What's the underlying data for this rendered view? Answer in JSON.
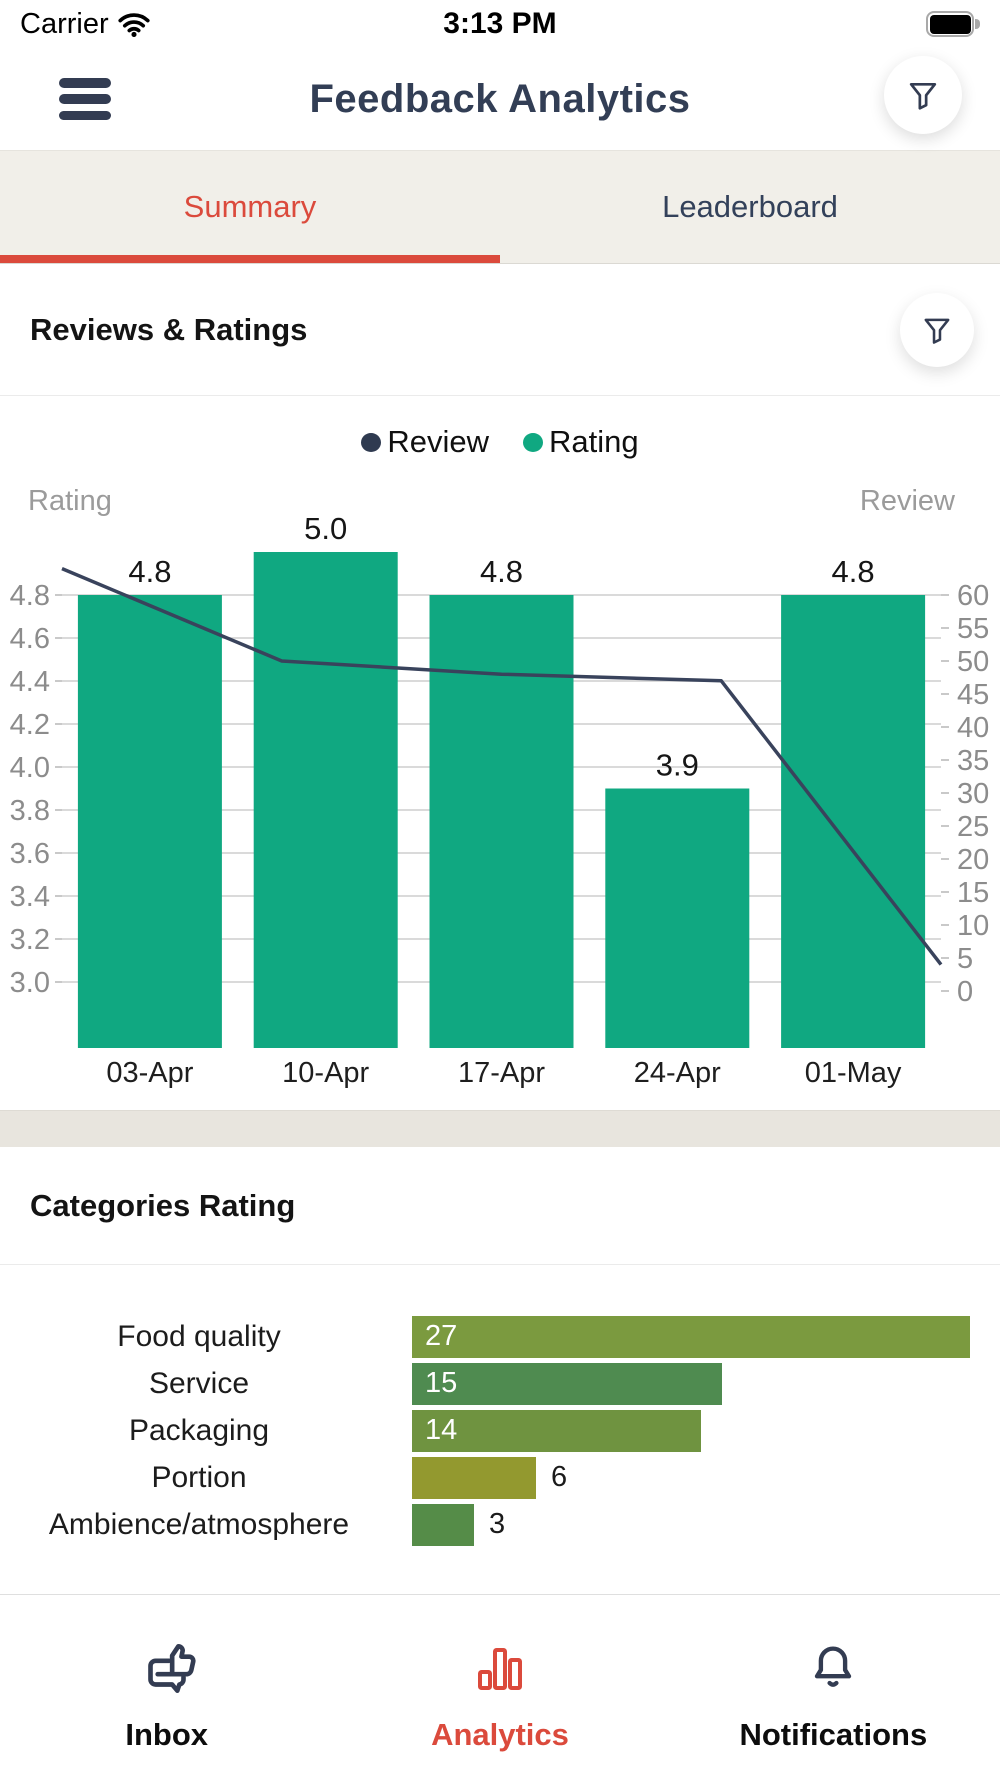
{
  "status_bar": {
    "carrier": "Carrier",
    "time": "3:13 PM",
    "icons": [
      "wifi-icon",
      "battery-icon"
    ]
  },
  "header": {
    "title": "Feedback Analytics",
    "menu_icon": "hamburger-menu-icon",
    "filter_icon": "filter-funnel-icon"
  },
  "tab_bar": {
    "tabs": [
      {
        "label": "Summary",
        "active": true
      },
      {
        "label": "Leaderboard",
        "active": false
      }
    ]
  },
  "reviews_section": {
    "title": "Reviews & Ratings",
    "filter_icon": "filter-funnel-icon"
  },
  "categories_section": {
    "title": "Categories Rating"
  },
  "colors": {
    "accent_red": "#DB4A3C",
    "navy": "#333C52",
    "bar_green": "#10A881",
    "axis_gray": "#8C8C8C",
    "axis_title_gray": "#9B9B9B",
    "grid_gray": "#DADADA",
    "tabbar_bg": "#F1EFE9",
    "band_bg": "#E8E5DE"
  },
  "chart_data": [
    {
      "type": "combo",
      "title": "Reviews & Ratings",
      "categories": [
        "03-Apr",
        "10-Apr",
        "17-Apr",
        "24-Apr",
        "01-May"
      ],
      "series": [
        {
          "name": "Rating",
          "chart": "bar",
          "axis": "left",
          "values": [
            4.8,
            5.0,
            4.8,
            3.9,
            4.8
          ],
          "labels": [
            "4.8",
            "5.0",
            "4.8",
            "3.9",
            "4.8"
          ],
          "color": "#10A881"
        },
        {
          "name": "Review",
          "chart": "line",
          "axis": "right",
          "values": [
            64,
            50,
            48,
            47,
            4
          ],
          "color": "#39435C"
        }
      ],
      "left_axis": {
        "title": "Rating",
        "tick_labels": [
          "4.8",
          "4.6",
          "4.4",
          "4.2",
          "4.0",
          "3.8",
          "3.6",
          "3.4",
          "3.2",
          "3.0"
        ],
        "min": 2.69,
        "max": 5.07
      },
      "right_axis": {
        "title": "Review",
        "ticks": [
          60,
          55,
          50,
          45,
          40,
          35,
          30,
          25,
          20,
          15,
          10,
          5,
          0
        ],
        "min": 0,
        "max": 65
      },
      "legend": [
        {
          "label": "Review",
          "color": "#2F3A50"
        },
        {
          "label": "Rating",
          "color": "#10A881"
        }
      ],
      "grid": "horizontal",
      "legend_position": "top"
    },
    {
      "type": "bar",
      "orientation": "horizontal",
      "title": "Categories Rating",
      "categories": [
        "Food quality",
        "Service",
        "Packaging",
        "Portion",
        "Ambience/atmosphere"
      ],
      "values": [
        27,
        15,
        14,
        6,
        3
      ],
      "bar_colors": [
        "#7B9A3F",
        "#4F8B50",
        "#6F9340",
        "#93992F",
        "#558C48"
      ],
      "xmax": 27
    }
  ],
  "bottom_nav": {
    "items": [
      {
        "label": "Inbox",
        "icon": "inbox-feedback-icon",
        "active": false
      },
      {
        "label": "Analytics",
        "icon": "analytics-bars-icon",
        "active": true
      },
      {
        "label": "Notifications",
        "icon": "notification-bell-icon",
        "active": false
      }
    ]
  }
}
